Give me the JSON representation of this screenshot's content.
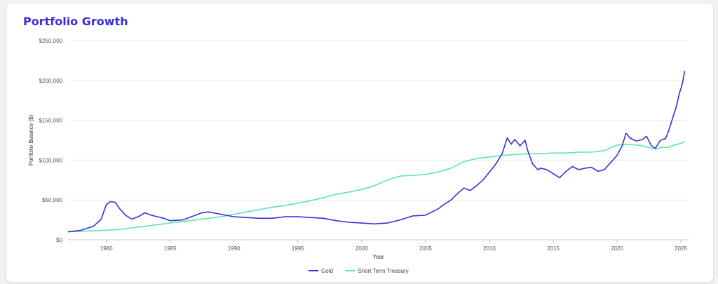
{
  "chart_data": {
    "type": "line",
    "title": "Portfolio Growth",
    "xlabel": "Year",
    "ylabel": "Portfolio Balance ($)",
    "xlim": [
      1977,
      2025.6
    ],
    "ylim": [
      0,
      250000
    ],
    "grid": true,
    "legend_position": "bottom",
    "x_ticks": [
      1980,
      1985,
      1990,
      1995,
      2000,
      2005,
      2010,
      2015,
      2020,
      2025
    ],
    "y_ticks": [
      0,
      50000,
      100000,
      150000,
      200000,
      250000
    ],
    "y_tick_labels": [
      "$0",
      "$50,000",
      "$100,000",
      "$150,000",
      "$200,000",
      "$250,000"
    ],
    "series": [
      {
        "name": "Gold",
        "color": "#3a2fd6",
        "x": [
          1977,
          1978,
          1979,
          1979.6,
          1980,
          1980.3,
          1980.7,
          1981,
          1981.5,
          1982,
          1982.5,
          1983,
          1983.5,
          1984,
          1984.5,
          1985,
          1986,
          1987,
          1987.5,
          1988,
          1989,
          1990,
          1991,
          1992,
          1993,
          1994,
          1995,
          1996,
          1997,
          1998,
          1999,
          2000,
          2001,
          2002,
          2003,
          2004,
          2005,
          2006,
          2006.5,
          2007,
          2007.5,
          2008,
          2008.5,
          2009,
          2009.5,
          2010,
          2010.5,
          2011,
          2011.4,
          2011.7,
          2012,
          2012.4,
          2012.8,
          2013,
          2013.4,
          2013.8,
          2014,
          2014.5,
          2015,
          2015.5,
          2016,
          2016.5,
          2017,
          2017.5,
          2018,
          2018.5,
          2019,
          2019.5,
          2020,
          2020.4,
          2020.7,
          2021,
          2021.5,
          2022,
          2022.3,
          2022.7,
          2023,
          2023.4,
          2023.8,
          2024,
          2024.3,
          2024.6,
          2024.9,
          2025.1,
          2025.3
        ],
        "values": [
          10000,
          12000,
          17000,
          26000,
          44000,
          48000,
          47000,
          40000,
          31000,
          26000,
          29000,
          34000,
          31000,
          29000,
          27000,
          24000,
          25000,
          31000,
          34000,
          35000,
          32000,
          29000,
          28000,
          27000,
          27000,
          29000,
          29000,
          28000,
          27000,
          24000,
          22000,
          21000,
          20000,
          21000,
          25000,
          30000,
          31000,
          39000,
          45000,
          50000,
          58000,
          65000,
          62000,
          68000,
          75000,
          85000,
          95000,
          108000,
          128000,
          120000,
          126000,
          118000,
          125000,
          112000,
          95000,
          88000,
          90000,
          88000,
          83000,
          78000,
          86000,
          92000,
          88000,
          90000,
          91000,
          86000,
          88000,
          97000,
          106000,
          118000,
          134000,
          128000,
          124000,
          126000,
          130000,
          118000,
          115000,
          125000,
          127000,
          135000,
          150000,
          165000,
          185000,
          195000,
          212000
        ]
      },
      {
        "name": "Short Term Treasury",
        "color": "#5fe3b0",
        "x": [
          1977,
          1980,
          1981,
          1982,
          1983,
          1984,
          1985,
          1986,
          1987,
          1988,
          1989,
          1990,
          1991,
          1992,
          1993,
          1994,
          1995,
          1996,
          1997,
          1998,
          1999,
          2000,
          2001,
          2002,
          2003,
          2004,
          2005,
          2006,
          2007,
          2008,
          2009,
          2010,
          2011,
          2012,
          2013,
          2014,
          2015,
          2016,
          2017,
          2018,
          2019,
          2020,
          2021,
          2022,
          2022.7,
          2023,
          2023.5,
          2024,
          2024.5,
          2025,
          2025.3
        ],
        "values": [
          10000,
          12000,
          13000,
          15000,
          17000,
          19000,
          21000,
          23000,
          25000,
          27000,
          29000,
          32000,
          35000,
          38000,
          41000,
          43000,
          46000,
          49000,
          53000,
          57000,
          60000,
          63000,
          68000,
          75000,
          80000,
          81000,
          82000,
          85000,
          90000,
          98000,
          102000,
          104000,
          106000,
          107000,
          108000,
          108000,
          109000,
          109000,
          110000,
          110000,
          112000,
          119000,
          120000,
          118000,
          115000,
          114000,
          116000,
          116000,
          119000,
          121000,
          123000
        ]
      }
    ]
  }
}
